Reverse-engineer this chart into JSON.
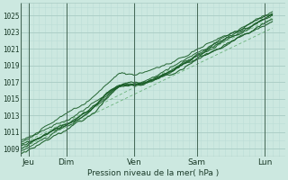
{
  "xlabel": "Pression niveau de la mer( hPa )",
  "bg_color": "#cce8e0",
  "grid_major_color": "#aaccc4",
  "grid_minor_color": "#bbddd6",
  "line_color_dark": "#1a5e28",
  "line_color_mid": "#2e7d42",
  "dashed_color": "#5aaa6a",
  "yticks": [
    1009,
    1011,
    1013,
    1015,
    1017,
    1019,
    1021,
    1023,
    1025
  ],
  "ylim": [
    1008.0,
    1026.5
  ],
  "xlim": [
    0.0,
    105.0
  ],
  "xtick_positions": [
    3,
    18,
    45,
    70,
    97
  ],
  "xtick_labels": [
    "Jeu",
    "Dim",
    "Ven",
    "Sam",
    "Lun"
  ],
  "vline_positions": [
    3,
    18,
    45,
    70,
    97
  ],
  "n_points": 200,
  "figsize": [
    3.2,
    2.0
  ],
  "dpi": 100
}
